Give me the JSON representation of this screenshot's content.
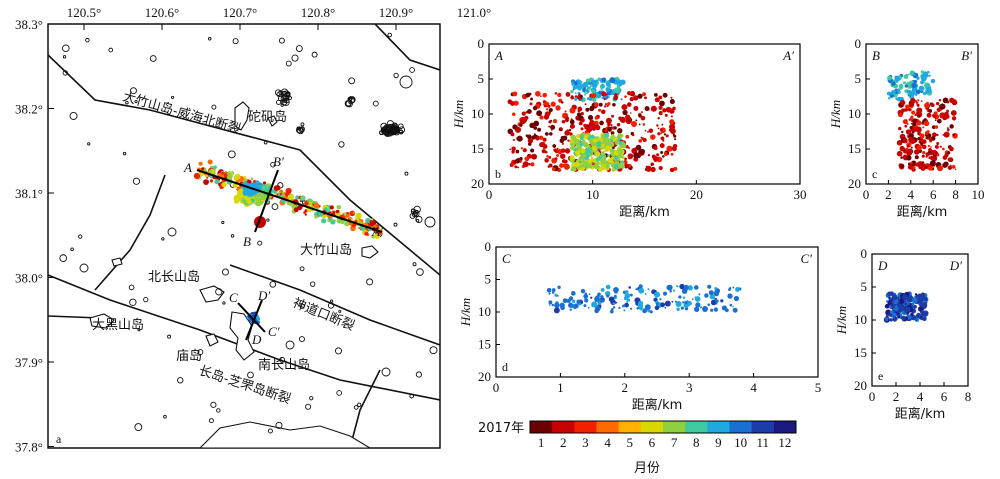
{
  "map": {
    "lon_ticks": [
      "120.5°",
      "120.6°",
      "120.7°",
      "120.8°",
      "120.9°",
      "121.0°"
    ],
    "lat_ticks": [
      "38.3°",
      "38.2°",
      "38.1°",
      "38.0°",
      "37.9°",
      "37.8°"
    ],
    "panel_letter": "a",
    "place_labels": [
      "砣矶岛",
      "大竹山岛",
      "北长山岛",
      "大黑山岛",
      "庙岛",
      "南长山岛"
    ],
    "fault_labels": [
      "大竹山岛-威海北断裂",
      "神道口断裂",
      "长岛-芝罘岛断裂"
    ],
    "profile_labels": [
      "A",
      "A′",
      "B",
      "B′",
      "C",
      "C′",
      "D",
      "D′"
    ]
  },
  "colorbar": {
    "year_label": "2017年",
    "ticks": [
      "1",
      "2",
      "3",
      "4",
      "5",
      "6",
      "7",
      "8",
      "9",
      "10",
      "11",
      "12"
    ],
    "unit_label": "月份",
    "colors": [
      "#6b0000",
      "#c80000",
      "#f02000",
      "#ff6a00",
      "#ffb000",
      "#d8d800",
      "#90d040",
      "#40c8a0",
      "#20a8e0",
      "#1a70d0",
      "#1c3ca8",
      "#1a1a80"
    ]
  },
  "chart_data": [
    {
      "panel": "b",
      "type": "scatter",
      "section_start": "A",
      "section_end": "A′",
      "xlabel": "距离/km",
      "ylabel": "H/km",
      "xlim": [
        0,
        30
      ],
      "ylim": [
        20,
        0
      ],
      "xticks": [
        "0",
        "10",
        "20",
        "30"
      ],
      "yticks": [
        "0",
        "5",
        "10",
        "15",
        "20"
      ],
      "clusters": [
        {
          "desc": "shallow cluster",
          "month_color": "#20a8e0",
          "x": [
            8,
            13
          ],
          "depth": [
            5,
            8
          ]
        },
        {
          "desc": "main deep cluster",
          "month_color": "#c80000",
          "x": [
            2,
            18
          ],
          "depth": [
            7,
            18
          ]
        },
        {
          "desc": "late deep cluster",
          "month_color": "#90d040",
          "x": [
            8,
            13
          ],
          "depth": [
            13,
            18
          ]
        }
      ]
    },
    {
      "panel": "c",
      "type": "scatter",
      "section_start": "B",
      "section_end": "B′",
      "xlabel": "距离/km",
      "ylabel": "H/km",
      "xlim": [
        0,
        10
      ],
      "ylim": [
        20,
        0
      ],
      "xticks": [
        "0",
        "2",
        "4",
        "6",
        "8",
        "10"
      ],
      "yticks": [
        "0",
        "5",
        "10",
        "15",
        "20"
      ],
      "clusters": [
        {
          "desc": "shallow cluster",
          "month_color": "#20a8e0",
          "x": [
            2,
            6
          ],
          "depth": [
            4,
            8
          ]
        },
        {
          "desc": "deep cluster",
          "month_color": "#c80000",
          "x": [
            3,
            8
          ],
          "depth": [
            8,
            18
          ]
        }
      ]
    },
    {
      "panel": "d",
      "type": "scatter",
      "section_start": "C",
      "section_end": "C′",
      "xlabel": "距离/km",
      "ylabel": "H/km",
      "xlim": [
        0,
        5
      ],
      "ylim": [
        20,
        0
      ],
      "xticks": [
        "0",
        "1",
        "2",
        "3",
        "4",
        "5"
      ],
      "yticks": [
        "0",
        "5",
        "10",
        "15",
        "20"
      ],
      "clusters": [
        {
          "desc": "Sep–Nov sequence",
          "month_color": "#1a70d0",
          "x": [
            0.8,
            3.8
          ],
          "depth": [
            6,
            10
          ]
        }
      ]
    },
    {
      "panel": "e",
      "type": "scatter",
      "section_start": "D",
      "section_end": "D′",
      "xlabel": "距离/km",
      "ylabel": "H/km",
      "xlim": [
        0,
        8
      ],
      "ylim": [
        20,
        0
      ],
      "xticks": [
        "0",
        "2",
        "4",
        "6",
        "8"
      ],
      "yticks": [
        "0",
        "5",
        "10",
        "15",
        "20"
      ],
      "clusters": [
        {
          "desc": "Sep–Nov sequence",
          "month_color": "#1c3ca8",
          "x": [
            1.2,
            4.5
          ],
          "depth": [
            6,
            10
          ]
        }
      ]
    }
  ]
}
